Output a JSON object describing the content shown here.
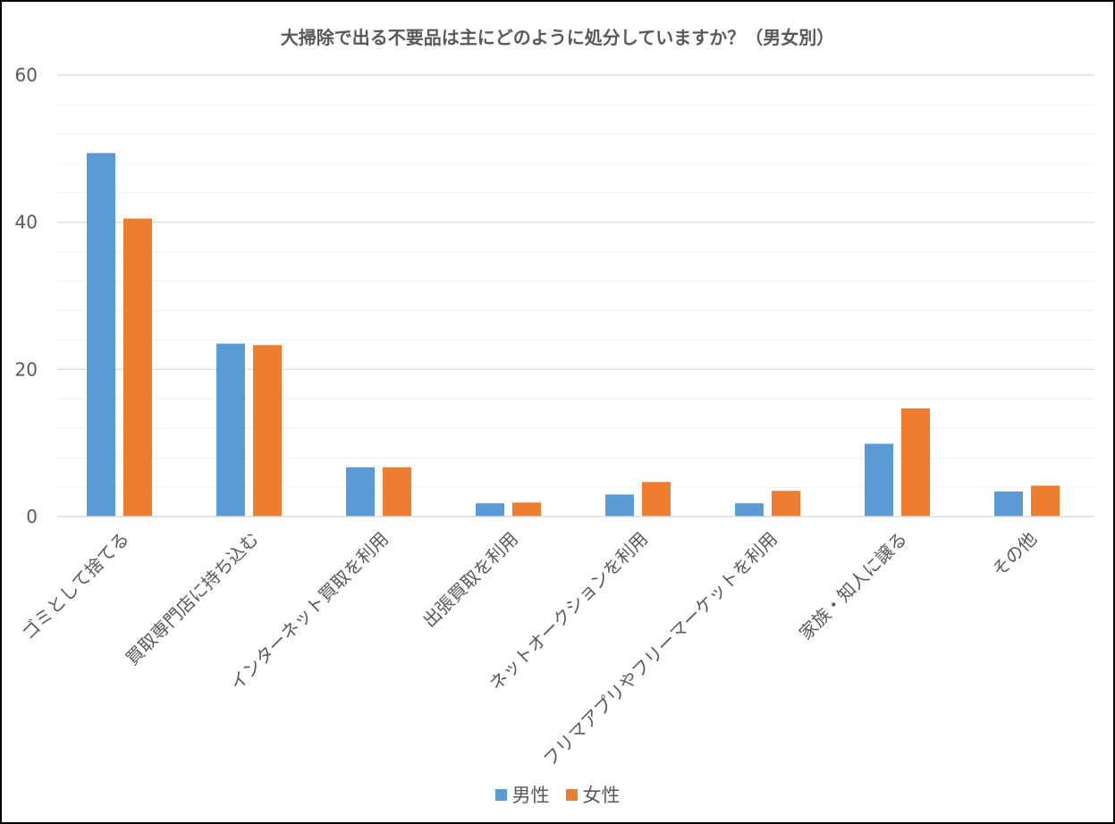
{
  "chart_data": {
    "type": "bar",
    "title": "大掃除で出る不要品は主にどのように処分していますか？（男女別）",
    "xlabel": "",
    "ylabel": "",
    "ylim": [
      0,
      60
    ],
    "yticks": [
      0,
      20,
      40,
      60
    ],
    "grid": true,
    "legend_position": "bottom",
    "categories": [
      "ゴミとして捨てる",
      "買取専門店に持ち込む",
      "インターネット買取を利用",
      "出張買取を利用",
      "ネットオークションを利用",
      "フリマアプリやフリーマーケットを利用",
      "家族・知人に譲る",
      "その他"
    ],
    "series": [
      {
        "name": "男性",
        "color": "#5b9bd5",
        "values": [
          49.4,
          23.5,
          6.7,
          1.8,
          3.0,
          1.8,
          9.9,
          3.4
        ]
      },
      {
        "name": "女性",
        "color": "#ed7d31",
        "values": [
          40.5,
          23.3,
          6.7,
          1.9,
          4.7,
          3.5,
          14.7,
          4.2
        ]
      }
    ]
  }
}
